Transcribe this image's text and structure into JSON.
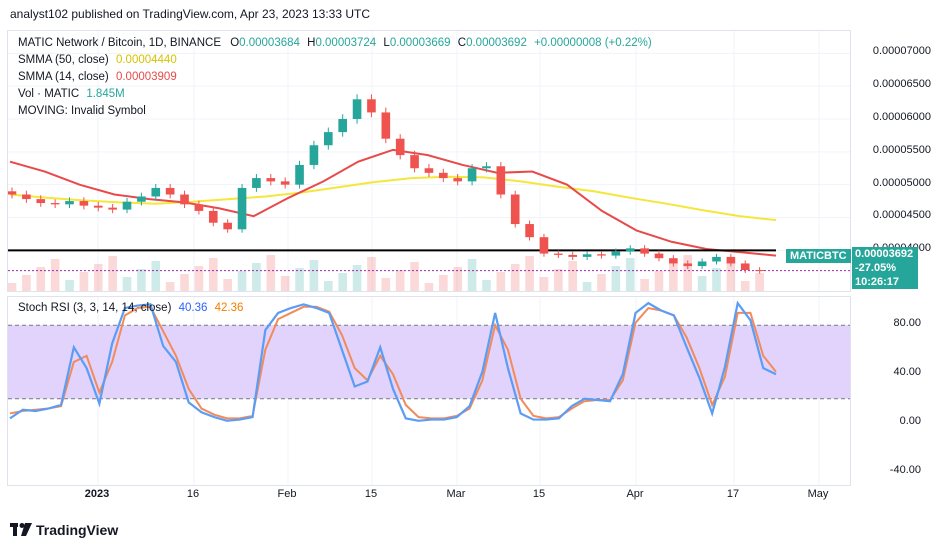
{
  "header": {
    "caption": "analyst102 published on TradingView.com, Apr 23, 2023 13:33 UTC"
  },
  "legend": {
    "symbol": "MATIC Network / Bitcoin, 1D, BINANCE",
    "o_label": "O",
    "o_value": "0.00003684",
    "h_label": "H",
    "h_value": "0.00003724",
    "l_label": "L",
    "l_value": "0.00003669",
    "c_label": "C",
    "c_value": "0.00003692",
    "change": "+0.00000008 (+0.22%)",
    "smma50_label": "SMMA (50, close)",
    "smma50_value": "0.00004440",
    "smma14_label": "SMMA (14, close)",
    "smma14_value": "0.00003909",
    "vol_label": "Vol · MATIC",
    "vol_value": "1.845M",
    "moving_label": "MOVING: Invalid Symbol"
  },
  "rsi_legend": {
    "label": "Stoch RSI (3, 3, 14, 14, close)",
    "k_value": "40.36",
    "d_value": "42.36"
  },
  "last_price": {
    "ticker": "MATICBTC",
    "price": "0.00003692",
    "change_pct": "-27.05%",
    "countdown": "10:26:17"
  },
  "colors": {
    "up": "#26a69a",
    "down": "#ef5350",
    "smma50": "#f5e63c",
    "smma14": "#e84a4a",
    "k_line": "#5b9cf5",
    "d_line": "#f28a5a",
    "rsi_band": "#e1d3fb"
  },
  "footer": {
    "brand": "TradingView"
  },
  "chart_data": [
    {
      "type": "candlestick",
      "title": "MATIC Network / Bitcoin, 1D, BINANCE",
      "y_axis_ticks": [
        "0.00007000",
        "0.00006500",
        "0.00006000",
        "0.00005500",
        "0.00005000",
        "0.00004500",
        "0.00004000"
      ],
      "ylim": [
        3.35e-05,
        7.34e-05
      ],
      "x_axis_ticks": [
        "2023",
        "16",
        "Feb",
        "15",
        "Mar",
        "15",
        "Apr",
        "17",
        "May"
      ],
      "horizontal_line": 4e-05,
      "smma50_path": [
        4.85e-05,
        4.8e-05,
        4.76e-05,
        4.73e-05,
        4.71e-05,
        4.74e-05,
        4.78e-05,
        4.82e-05,
        4.88e-05,
        4.96e-05,
        5.04e-05,
        5.1e-05,
        5.12e-05,
        5.11e-05,
        5.05e-05,
        4.97e-05,
        4.9e-05,
        4.8e-05,
        4.71e-05,
        4.61e-05,
        4.52e-05,
        4.46e-05
      ],
      "smma14_path": [
        5.35e-05,
        5.2e-05,
        5e-05,
        4.85e-05,
        4.78e-05,
        4.73e-05,
        4.64e-05,
        4.52e-05,
        4.8e-05,
        5.05e-05,
        5.35e-05,
        5.53e-05,
        5.45e-05,
        5.3e-05,
        5.18e-05,
        5.2e-05,
        5e-05,
        4.6e-05,
        4.3e-05,
        4.13e-05,
        4.02e-05,
        3.97e-05,
        3.92e-05
      ],
      "candles_close_approx": [
        4.85e-05,
        4.78e-05,
        4.72e-05,
        4.7e-05,
        4.75e-05,
        4.68e-05,
        4.65e-05,
        4.62e-05,
        4.74e-05,
        4.82e-05,
        4.95e-05,
        4.85e-05,
        4.7e-05,
        4.6e-05,
        4.42e-05,
        4.32e-05,
        4.95e-05,
        5.1e-05,
        5.05e-05,
        5e-05,
        5.3e-05,
        5.6e-05,
        5.8e-05,
        6e-05,
        6.3e-05,
        6.1e-05,
        5.7e-05,
        5.45e-05,
        5.25e-05,
        5.18e-05,
        5.1e-05,
        5.05e-05,
        5.25e-05,
        5.28e-05,
        4.85e-05,
        4.4e-05,
        4.2e-05,
        3.95e-05,
        3.93e-05,
        3.9e-05,
        3.94e-05,
        3.92e-05,
        3.98e-05,
        4.03e-05,
        3.95e-05,
        3.88e-05,
        3.8e-05,
        3.76e-05,
        3.83e-05,
        3.9e-05,
        3.8e-05,
        3.7e-05,
        3.69e-05
      ]
    },
    {
      "type": "line",
      "title": "Stoch RSI (3, 3, 14, 14, close)",
      "y_axis_ticks": [
        "80.00",
        "40.00",
        "0.00",
        "-40.00"
      ],
      "ylim": [
        -52,
        103
      ],
      "band": [
        20,
        80
      ],
      "series": [
        {
          "name": "K",
          "values": [
            4,
            11,
            10,
            12,
            15,
            62,
            45,
            16,
            65,
            94,
            96,
            97,
            63,
            50,
            17,
            9,
            5,
            2,
            3,
            5,
            76,
            90,
            94,
            97,
            94,
            90,
            60,
            30,
            34,
            62,
            28,
            4,
            2,
            3,
            3,
            5,
            14,
            42,
            90,
            45,
            8,
            3,
            3,
            4,
            14,
            20,
            19,
            18,
            40,
            90,
            98,
            92,
            88,
            62,
            37,
            8,
            46,
            98,
            84,
            45,
            40
          ]
        },
        {
          "name": "D",
          "values": [
            8,
            10,
            11,
            12,
            14,
            50,
            55,
            25,
            50,
            88,
            94,
            95,
            75,
            55,
            28,
            12,
            7,
            4,
            4,
            6,
            60,
            85,
            90,
            95,
            95,
            91,
            72,
            45,
            35,
            55,
            40,
            15,
            5,
            4,
            4,
            6,
            12,
            35,
            80,
            60,
            20,
            6,
            4,
            5,
            12,
            18,
            19,
            19,
            35,
            82,
            94,
            92,
            88,
            70,
            45,
            15,
            38,
            90,
            90,
            55,
            42
          ]
        }
      ]
    }
  ]
}
